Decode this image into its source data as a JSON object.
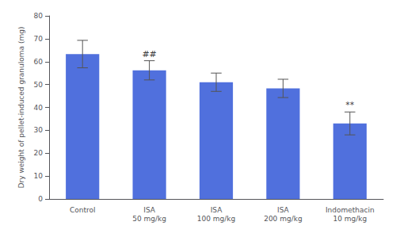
{
  "chart_data": {
    "type": "bar",
    "categories": [
      "Control",
      "ISA\n50 mg/kg",
      "ISA\n100 mg/kg",
      "ISA\n200 mg/kg",
      "Indomethacin\n10 mg/kg"
    ],
    "values": [
      63.3,
      56.2,
      51.0,
      48.3,
      33.0
    ],
    "errors": [
      6.0,
      4.2,
      4.0,
      4.0,
      5.0
    ],
    "annotations": [
      {
        "category": "ISA\n50 mg/kg",
        "text": "##"
      },
      {
        "category": "Indomethacin\n10 mg/kg",
        "text": "**"
      }
    ],
    "ylabel": "Dry weight of pellet-induced granuloma (mg)",
    "ylim": [
      0,
      80
    ],
    "yticks": [
      0,
      10,
      20,
      30,
      40,
      50,
      60,
      70,
      80
    ],
    "grid": false
  }
}
